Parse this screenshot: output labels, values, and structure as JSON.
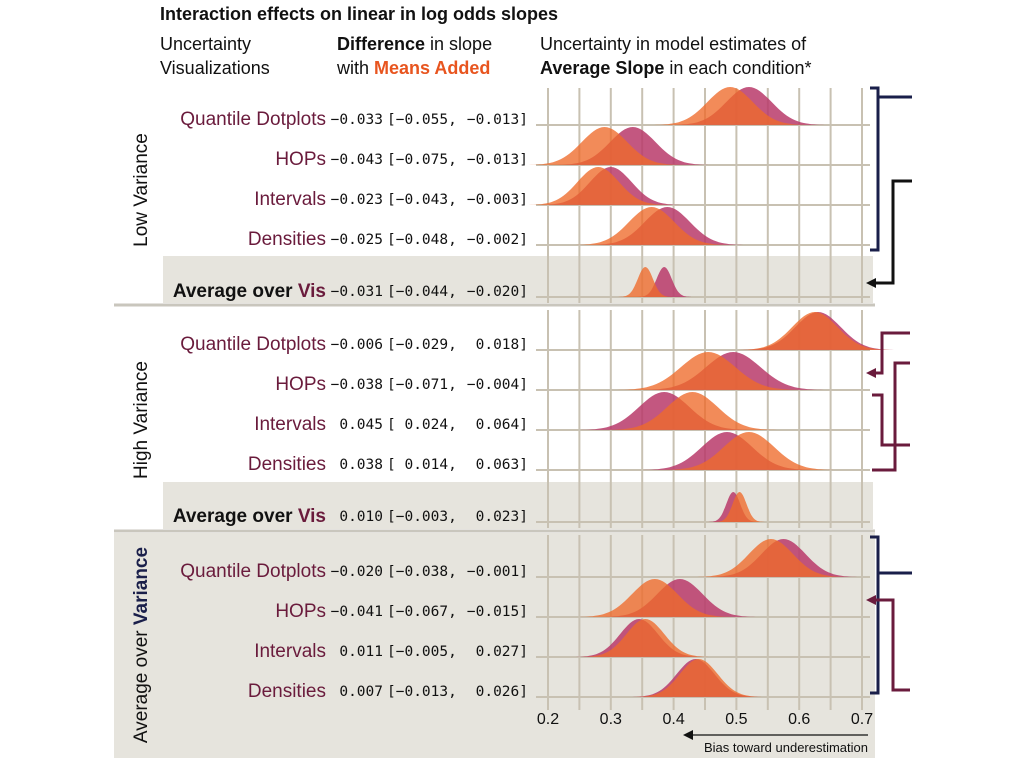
{
  "header": {
    "title": "Interaction effects on linear in log odds slopes",
    "col1_line1": "Uncertainty",
    "col1_line2": "Visualizations",
    "col2_bold": "Difference",
    "col2_rest": " in slope",
    "col2_line2_pre": "with ",
    "col2_line2_accent": "Means Added",
    "col3_line1": "Uncertainty in model estimates of",
    "col3_bold": "Average Slope",
    "col3_rest": " in each condition*"
  },
  "colors": {
    "base_series": "#b83a6a",
    "means_added_series": "#ee6a2a",
    "overlap": "#d4311f",
    "accent_text": "#e8551f",
    "vis_label": "#6a1b3c",
    "panel_bg": "#e6e4dd",
    "grid": "#c8c1b2",
    "bracket_navy": "#1a1f4a",
    "bracket_plum": "#6a1b3c"
  },
  "avg_prefix": "Average over ",
  "avg_suffix": "Vis",
  "note": "Bias toward underestimation",
  "chart_data": {
    "type": "density-ridgeline",
    "xlim": [
      0.2,
      0.7
    ],
    "xticks": [
      "0.2",
      "0.3",
      "0.4",
      "0.5",
      "0.6",
      "0.7"
    ],
    "series_order": [
      "base",
      "means_added"
    ],
    "groups": [
      {
        "label": "Low Variance",
        "rows": [
          {
            "label": "Quantile Dotplots",
            "ci_diff": "−0.033",
            "ci_lo": "[−0.055,",
            "ci_hi": "−0.013]",
            "base": {
              "mean": 0.52,
              "sd": 0.036
            },
            "means_added": {
              "mean": 0.49,
              "sd": 0.036
            }
          },
          {
            "label": "HOPs",
            "ci_diff": "−0.043",
            "ci_lo": "[−0.075,",
            "ci_hi": "−0.013]",
            "base": {
              "mean": 0.335,
              "sd": 0.036
            },
            "means_added": {
              "mean": 0.29,
              "sd": 0.036
            }
          },
          {
            "label": "Intervals",
            "ci_diff": "−0.023",
            "ci_lo": "[−0.043,",
            "ci_hi": "−0.003]",
            "base": {
              "mean": 0.3,
              "sd": 0.033
            },
            "means_added": {
              "mean": 0.28,
              "sd": 0.033
            }
          },
          {
            "label": "Densities",
            "ci_diff": "−0.025",
            "ci_lo": "[−0.048,",
            "ci_hi": "−0.002]",
            "base": {
              "mean": 0.39,
              "sd": 0.036
            },
            "means_added": {
              "mean": 0.365,
              "sd": 0.036
            }
          }
        ],
        "average": {
          "ci_diff": "−0.031",
          "ci_lo": "[−0.044,",
          "ci_hi": "−0.020]",
          "base": {
            "mean": 0.385,
            "sd": 0.012
          },
          "means_added": {
            "mean": 0.355,
            "sd": 0.012
          }
        }
      },
      {
        "label": "High Variance",
        "rows": [
          {
            "label": "Quantile Dotplots",
            "ci_diff": "−0.006",
            "ci_lo": "[−0.029,",
            "ci_hi": "0.018]",
            "base": {
              "mean": 0.63,
              "sd": 0.036
            },
            "means_added": {
              "mean": 0.625,
              "sd": 0.036
            }
          },
          {
            "label": "HOPs",
            "ci_diff": "−0.038",
            "ci_lo": "[−0.071,",
            "ci_hi": "−0.004]",
            "base": {
              "mean": 0.495,
              "sd": 0.043
            },
            "means_added": {
              "mean": 0.455,
              "sd": 0.043
            }
          },
          {
            "label": "Intervals",
            "ci_diff": "0.045",
            "ci_lo": "[ 0.024,",
            "ci_hi": "0.064]",
            "base": {
              "mean": 0.385,
              "sd": 0.04
            },
            "means_added": {
              "mean": 0.43,
              "sd": 0.04
            }
          },
          {
            "label": "Densities",
            "ci_diff": "0.038",
            "ci_lo": "[ 0.014,",
            "ci_hi": "0.063]",
            "base": {
              "mean": 0.485,
              "sd": 0.04
            },
            "means_added": {
              "mean": 0.52,
              "sd": 0.04
            }
          }
        ],
        "average": {
          "ci_diff": "0.010",
          "ci_lo": "[−0.003,",
          "ci_hi": "0.023]",
          "base": {
            "mean": 0.495,
            "sd": 0.011
          },
          "means_added": {
            "mean": 0.505,
            "sd": 0.011
          }
        }
      },
      {
        "label_pre": "Average over ",
        "label_bold": "Variance",
        "rows": [
          {
            "label": "Quantile Dotplots",
            "ci_diff": "−0.020",
            "ci_lo": "[−0.038,",
            "ci_hi": "−0.001]",
            "base": {
              "mean": 0.575,
              "sd": 0.035
            },
            "means_added": {
              "mean": 0.555,
              "sd": 0.035
            }
          },
          {
            "label": "HOPs",
            "ci_diff": "−0.041",
            "ci_lo": "[−0.067,",
            "ci_hi": "−0.015]",
            "base": {
              "mean": 0.41,
              "sd": 0.036
            },
            "means_added": {
              "mean": 0.37,
              "sd": 0.036
            }
          },
          {
            "label": "Intervals",
            "ci_diff": "0.011",
            "ci_lo": "[−0.005,",
            "ci_hi": "0.027]",
            "base": {
              "mean": 0.345,
              "sd": 0.03
            },
            "means_added": {
              "mean": 0.355,
              "sd": 0.03
            }
          },
          {
            "label": "Densities",
            "ci_diff": "0.007",
            "ci_lo": "[−0.013,",
            "ci_hi": "0.026]",
            "base": {
              "mean": 0.435,
              "sd": 0.03
            },
            "means_added": {
              "mean": 0.44,
              "sd": 0.03
            }
          }
        ]
      }
    ]
  }
}
